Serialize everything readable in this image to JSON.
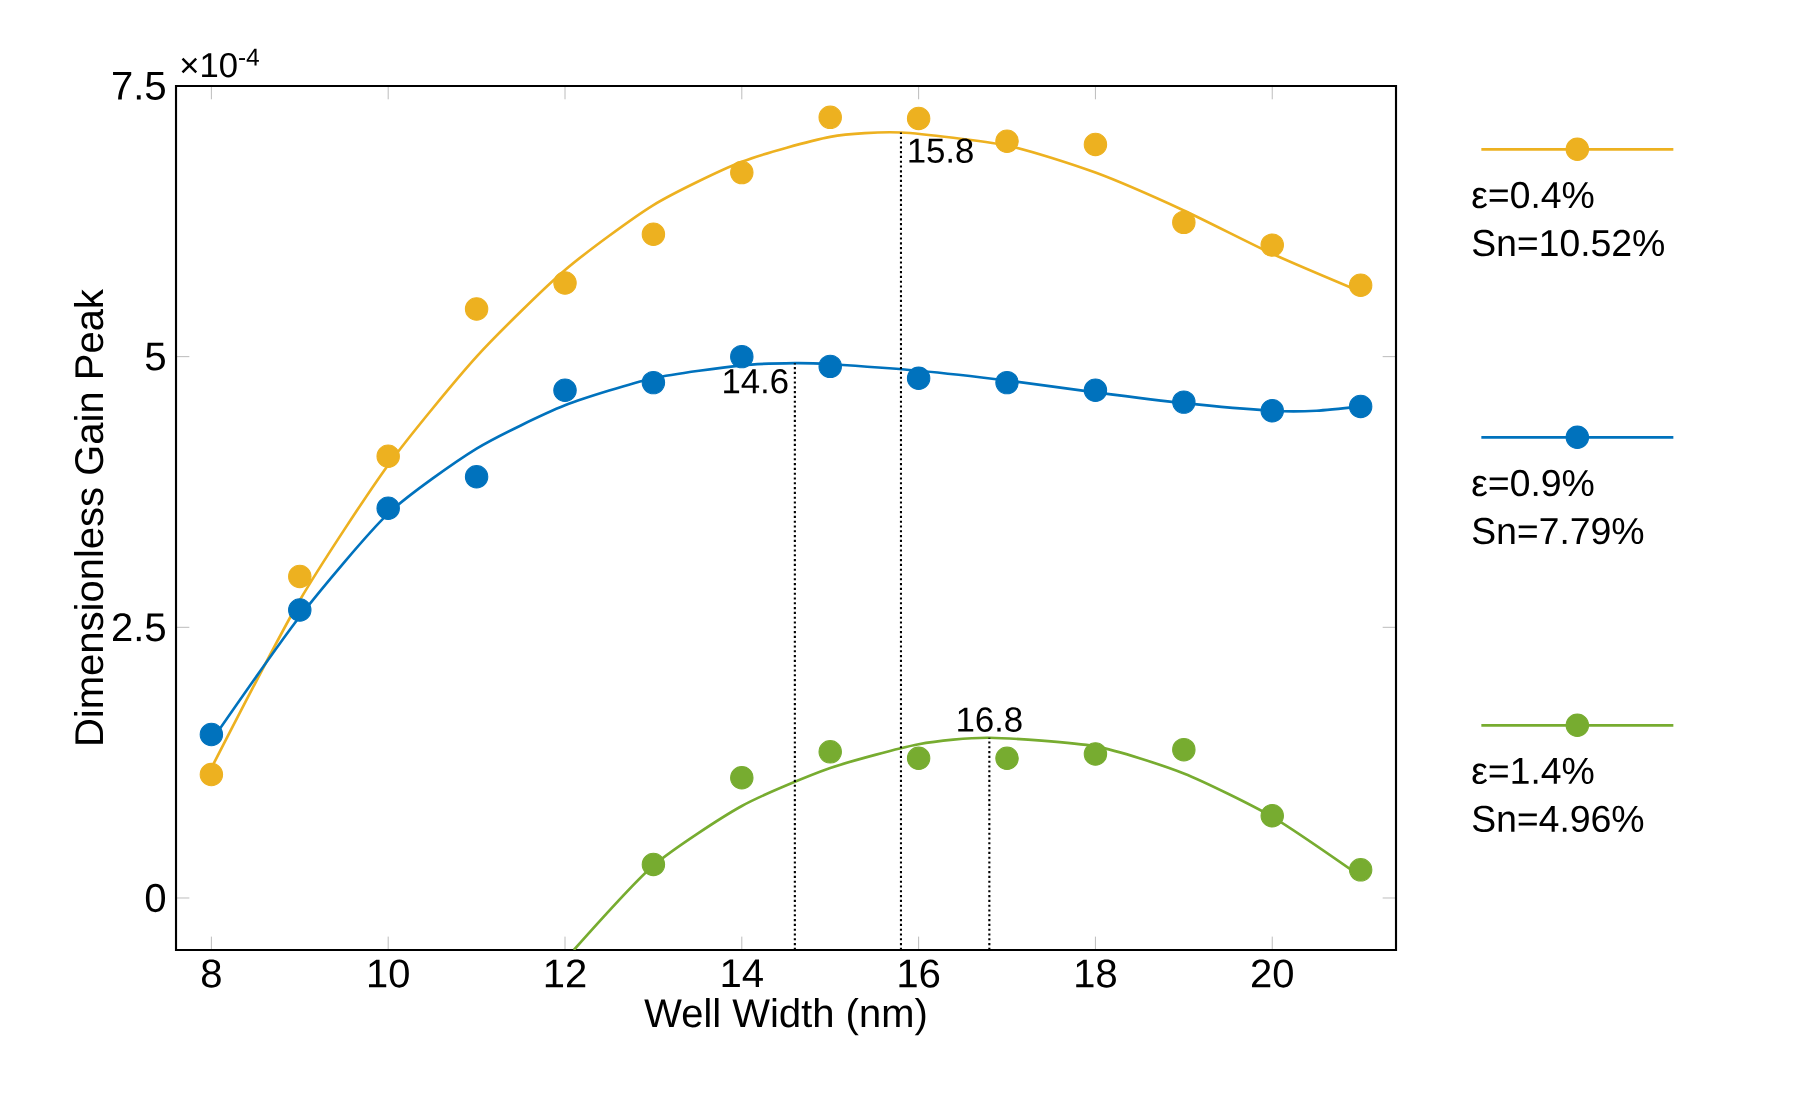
{
  "chart_data": {
    "type": "scatter",
    "xlabel": "Well Width (nm)",
    "ylabel": "Dimensionless Gain Peak",
    "annotations": [
      "×10$^{-4}$"
    ],
    "xlim": [
      7.6,
      21.4
    ],
    "ylim": [
      -0.48,
      7.5
    ],
    "xticks": [
      8,
      10,
      12,
      14,
      16,
      18,
      20
    ],
    "yticks": [
      0,
      2.5,
      5,
      7.5
    ],
    "marker": "circle",
    "grid": false,
    "legend": "right",
    "series": [
      {
        "name": "ε=0.4% Sn=10.52%",
        "color": "#edb120",
        "x": [
          8,
          9,
          10,
          11,
          12,
          13,
          14,
          15,
          16,
          17,
          18,
          19,
          20,
          21
        ],
        "values": [
          1.14,
          2.97,
          4.08,
          5.44,
          5.68,
          6.13,
          6.7,
          7.21,
          7.2,
          6.99,
          6.96,
          6.24,
          6.03,
          5.66
        ]
      },
      {
        "type": "line",
        "marker": "none",
        "color": "#edb120",
        "x": [
          8,
          9,
          10,
          11,
          12,
          13,
          14,
          15,
          15.8,
          17,
          18,
          19,
          20,
          21
        ],
        "values": [
          1.2,
          2.75,
          4.0,
          5.0,
          5.8,
          6.4,
          6.8,
          7.03,
          7.07,
          6.95,
          6.7,
          6.35,
          5.95,
          5.6
        ]
      },
      {
        "name": "ε=0.9% Sn=7.79%",
        "color": "#0072bd",
        "x": [
          8,
          9,
          10,
          11,
          12,
          13,
          14,
          15,
          16,
          17,
          18,
          19,
          20,
          21
        ],
        "values": [
          1.51,
          2.66,
          3.6,
          3.89,
          4.69,
          4.76,
          5.0,
          4.91,
          4.8,
          4.76,
          4.69,
          4.58,
          4.5,
          4.54
        ]
      },
      {
        "type": "line",
        "marker": "none",
        "color": "#0072bd",
        "x": [
          8,
          9,
          10,
          11,
          12,
          13,
          14,
          14.6,
          15,
          16,
          17,
          18,
          19,
          20,
          20.5,
          21
        ],
        "values": [
          1.45,
          2.6,
          3.55,
          4.15,
          4.55,
          4.8,
          4.92,
          4.94,
          4.93,
          4.87,
          4.78,
          4.67,
          4.57,
          4.5,
          4.5,
          4.54
        ]
      },
      {
        "name": "ε=1.4% Sn=4.96%",
        "color": "#77ac30",
        "x": [
          13,
          14,
          15,
          16,
          17,
          18,
          19,
          20,
          21
        ],
        "values": [
          0.31,
          1.11,
          1.35,
          1.29,
          1.29,
          1.33,
          1.37,
          0.76,
          0.26
        ]
      },
      {
        "type": "line",
        "marker": "none",
        "color": "#77ac30",
        "x": [
          12.1,
          13,
          14,
          15,
          16,
          16.8,
          18,
          19,
          20,
          21
        ],
        "values": [
          -0.48,
          0.3,
          0.85,
          1.2,
          1.42,
          1.48,
          1.4,
          1.15,
          0.75,
          0.2
        ]
      }
    ],
    "ref_lines": [
      {
        "axis": "x",
        "value": 15.8,
        "label": "15.8",
        "color": "#000000",
        "line_style": "dotted"
      },
      {
        "axis": "x",
        "value": 14.6,
        "label": "14.6",
        "color": "#000000",
        "line_style": "dotted"
      },
      {
        "axis": "x",
        "value": 16.8,
        "label": "16.8",
        "color": "#000000",
        "line_style": "dotted"
      }
    ]
  }
}
